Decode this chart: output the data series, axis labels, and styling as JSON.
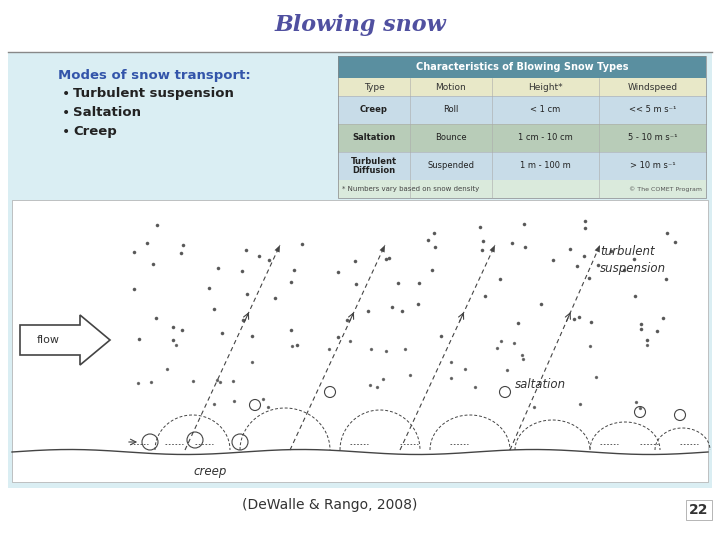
{
  "title": "Blowing snow",
  "title_color": "#5050a0",
  "title_fontsize": 16,
  "bg_color": "#daeef3",
  "slide_bg": "#ffffff",
  "text_header": "Modes of snow transport:",
  "text_bullets": [
    "Turbulent suspension",
    "Saltation",
    "Creep"
  ],
  "text_color": "#3355aa",
  "table_title": "Characteristics of Blowing Snow Types",
  "table_header_bg": "#5a8fa0",
  "table_header_color": "#ffffff",
  "table_col_headers": [
    "Type",
    "Motion",
    "Height*",
    "Windspeed"
  ],
  "table_col_header_bg": "#e8e8c8",
  "table_rows": [
    [
      "Creep",
      "Roll",
      "< 1 cm",
      "<< 5 m s⁻¹"
    ],
    [
      "Saltation",
      "Bounce",
      "1 cm - 10 cm",
      "5 - 10 m s⁻¹"
    ],
    [
      "Turbulent\nDiffusion",
      "Suspended",
      "1 m - 100 m",
      "> 10 m s⁻¹"
    ]
  ],
  "table_row_bg": [
    "#c8dce8",
    "#c8dce8",
    "#c8dce8"
  ],
  "table_alt_bg": "#b8ccb8",
  "table_footnote": "* Numbers vary based on snow density",
  "table_credit": "© The COMET Program",
  "citation": "(DeWalle & Rango, 2008)",
  "page_num": "22",
  "diagram_bg": "#ffffff",
  "label_turbulent": "turbulent\nsuspension",
  "label_saltation": "saltation",
  "label_creep": "creep",
  "label_flow": "flow",
  "line_color": "#444444",
  "dot_color": "#555555"
}
